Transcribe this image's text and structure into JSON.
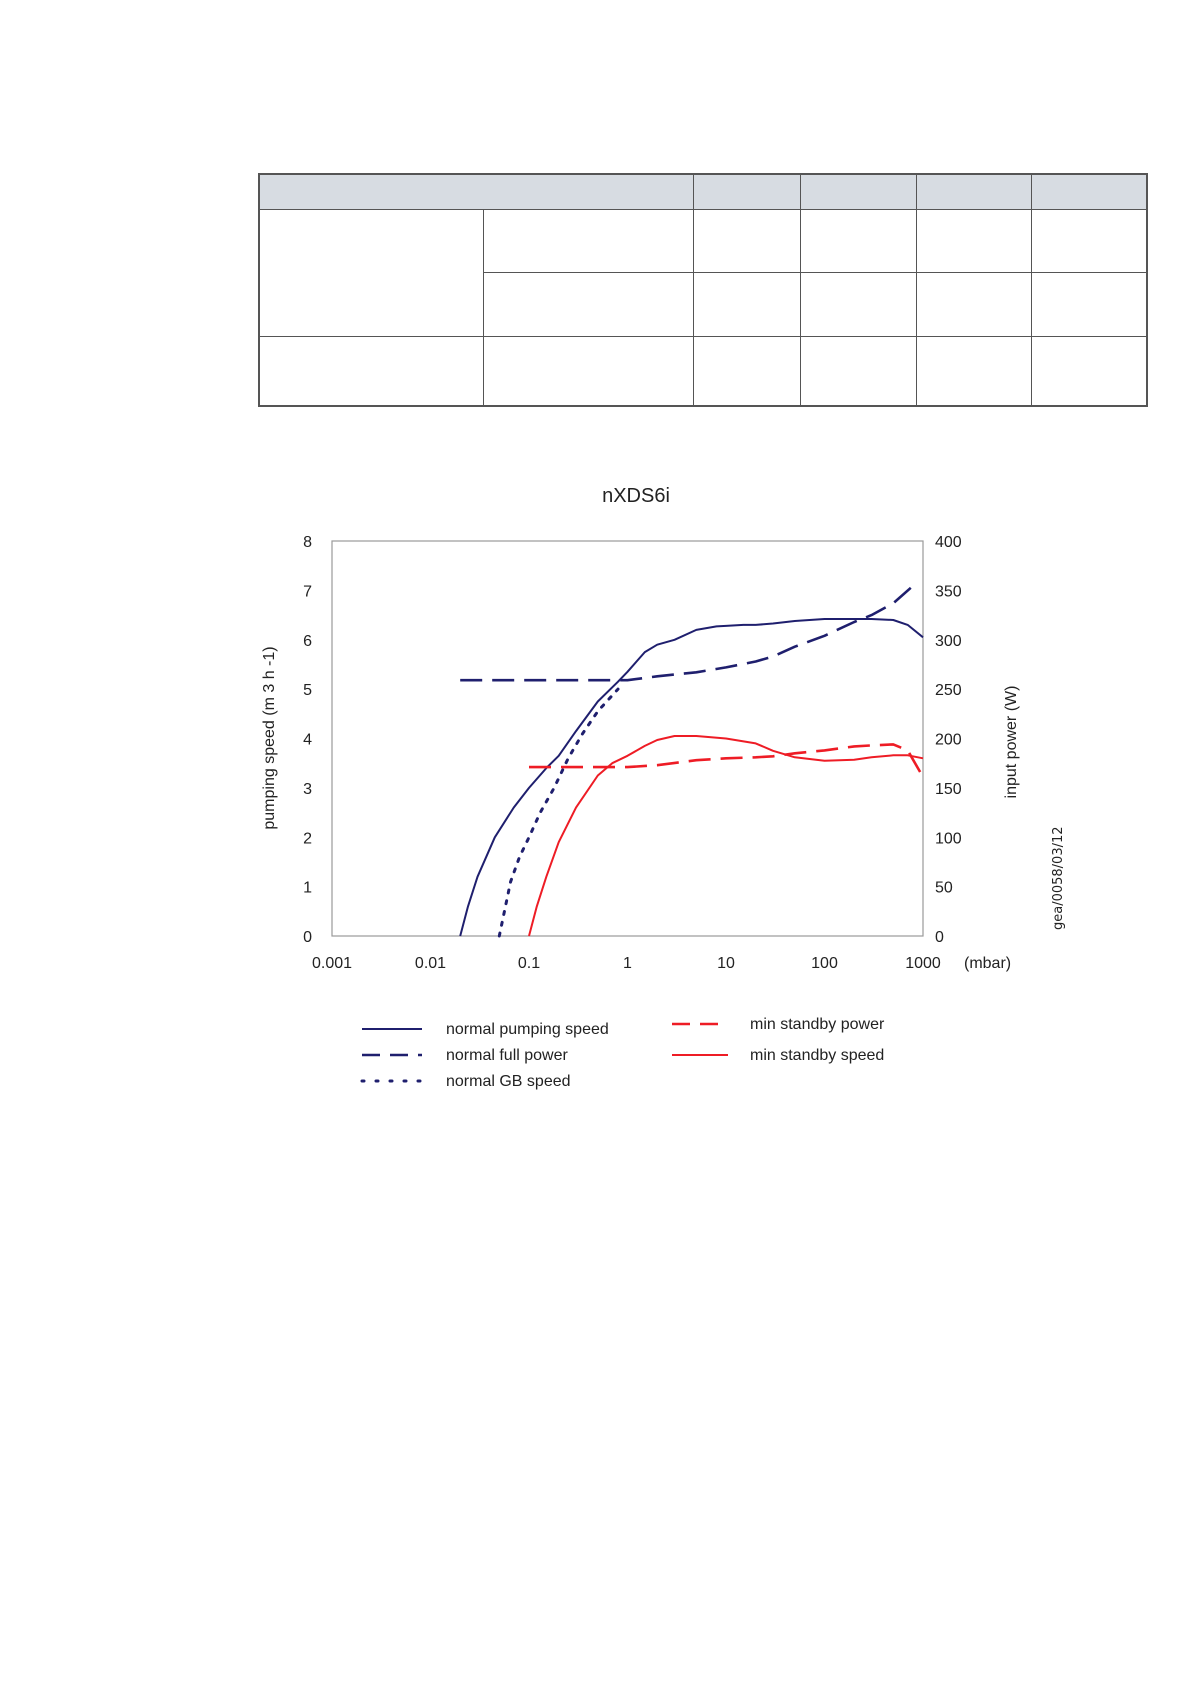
{
  "colors": {
    "navy": "#1f1f6e",
    "red": "#ee1c25",
    "plot_border": "#9a9a9a",
    "table_header": "#d7dce2"
  },
  "chart_data": {
    "type": "line",
    "title": "nXDS6i",
    "xlabel": "",
    "x_unit": "(mbar)",
    "x_scale": "log",
    "xlim": [
      0.001,
      1000
    ],
    "x_ticks": [
      0.001,
      0.01,
      0.1,
      1,
      10,
      100,
      1000
    ],
    "x_tick_labels": [
      "0.001",
      "0.01",
      "0.1",
      "1",
      "10",
      "100",
      "1000"
    ],
    "ylabel": "pumping speed (m 3 h -1)",
    "ylim": [
      0,
      8
    ],
    "y_ticks": [
      0,
      1,
      2,
      3,
      4,
      5,
      6,
      7,
      8
    ],
    "y2label": "input power (W)",
    "y2lim": [
      0,
      400
    ],
    "y2_ticks": [
      0,
      50,
      100,
      150,
      200,
      250,
      300,
      350,
      400
    ],
    "grid": false,
    "legend_position": "bottom",
    "side_note": "gea/0058/03/12",
    "series": [
      {
        "name": "normal pumping speed",
        "axis": "left",
        "color": "#1f1f6e",
        "style": "solid",
        "x": [
          0.02,
          0.024,
          0.03,
          0.045,
          0.07,
          0.1,
          0.15,
          0.2,
          0.3,
          0.5,
          0.8,
          1,
          1.5,
          2,
          3,
          5,
          8,
          10,
          15,
          20,
          30,
          50,
          100,
          200,
          300,
          500,
          700,
          1000
        ],
        "y": [
          0,
          0.6,
          1.2,
          2.0,
          2.6,
          3.0,
          3.4,
          3.65,
          4.15,
          4.75,
          5.15,
          5.35,
          5.75,
          5.9,
          6.0,
          6.2,
          6.27,
          6.28,
          6.3,
          6.3,
          6.33,
          6.38,
          6.42,
          6.42,
          6.42,
          6.4,
          6.3,
          6.05
        ]
      },
      {
        "name": "normal full power",
        "axis": "right",
        "color": "#1f1f6e",
        "style": "dashed",
        "x": [
          0.02,
          0.05,
          0.1,
          0.2,
          0.5,
          1,
          2,
          5,
          10,
          20,
          30,
          50,
          100,
          200,
          300,
          500,
          800
        ],
        "y": [
          259,
          259,
          259,
          259,
          259,
          259,
          263,
          267,
          272,
          278,
          283,
          293,
          304,
          318,
          325,
          337,
          355
        ]
      },
      {
        "name": "normal GB speed",
        "axis": "left",
        "color": "#1f1f6e",
        "style": "dotted",
        "x": [
          0.05,
          0.055,
          0.065,
          0.08,
          0.1,
          0.13,
          0.18,
          0.25,
          0.35,
          0.5,
          0.8
        ],
        "y": [
          0,
          0.4,
          1.1,
          1.6,
          2.0,
          2.5,
          3.0,
          3.6,
          4.1,
          4.55,
          5.0
        ]
      },
      {
        "name": "min standby power",
        "axis": "right",
        "color": "#ee1c25",
        "style": "dashed",
        "x": [
          0.1,
          0.2,
          0.5,
          1,
          2,
          5,
          10,
          20,
          30,
          50,
          100,
          200,
          300,
          500,
          700,
          1000
        ],
        "y": [
          171,
          171,
          171,
          171,
          173,
          178,
          180,
          181,
          182,
          185,
          188,
          192,
          193,
          194,
          188,
          161
        ]
      },
      {
        "name": "min standby speed",
        "axis": "left",
        "color": "#ee1c25",
        "style": "solid",
        "x": [
          0.1,
          0.12,
          0.15,
          0.2,
          0.3,
          0.5,
          0.7,
          1,
          1.5,
          2,
          3,
          5,
          10,
          20,
          30,
          50,
          100,
          200,
          300,
          500,
          700,
          1000
        ],
        "y": [
          0,
          0.6,
          1.2,
          1.9,
          2.6,
          3.25,
          3.5,
          3.65,
          3.85,
          3.97,
          4.05,
          4.05,
          4.0,
          3.9,
          3.75,
          3.62,
          3.55,
          3.57,
          3.62,
          3.66,
          3.66,
          3.6
        ]
      }
    ]
  }
}
